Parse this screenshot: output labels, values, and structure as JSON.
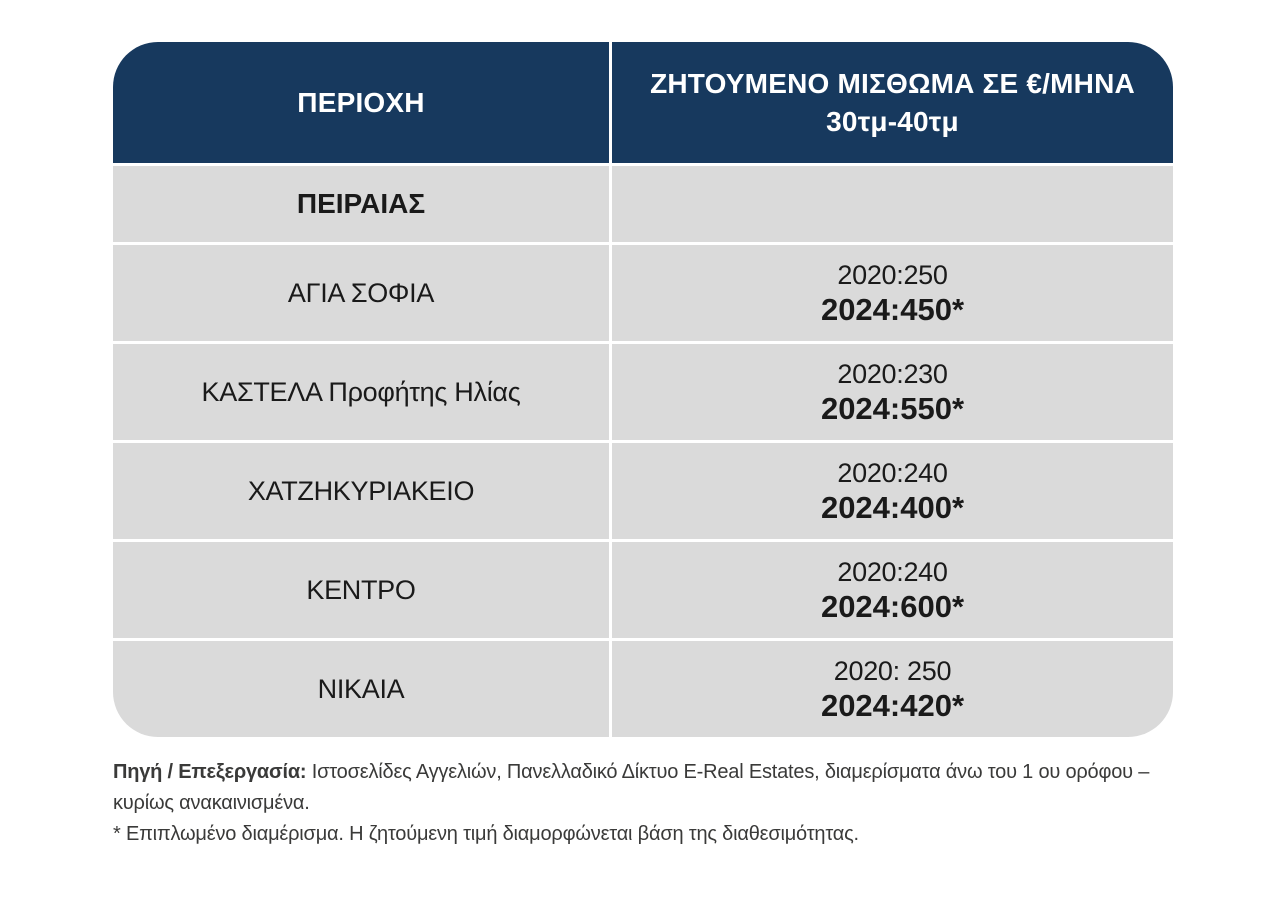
{
  "colors": {
    "header_bg": "#17395E",
    "header_text": "#FFFFFF",
    "row_bg": "#DADADA",
    "body_text": "#1A1A1A",
    "footer_text": "#3A3A39"
  },
  "table": {
    "header": {
      "area_label": "ΠΕΡΙΟΧΗ",
      "rent_label_line1": "ΖΗΤΟΥΜΕΝΟ ΜΙΣΘΩΜΑ ΣΕ €/ΜΗΝΑ",
      "rent_label_line2": "30τμ-40τμ"
    },
    "section_label": "ΠΕΙΡΑΙΑΣ",
    "rows": [
      {
        "area": "ΑΓΙΑ ΣΟΦΙΑ",
        "rent_2020": "2020:250",
        "rent_2024": "2024:450*"
      },
      {
        "area": "ΚΑΣΤΕΛΑ Προφήτης Ηλίας",
        "rent_2020": "2020:230",
        "rent_2024": "2024:550*"
      },
      {
        "area": "ΧΑΤΖΗΚΥΡΙΑΚΕΙΟ",
        "rent_2020": "2020:240",
        "rent_2024": "2024:400*"
      },
      {
        "area": "ΚΕΝΤΡΟ",
        "rent_2020": "2020:240",
        "rent_2024": "2024:600*"
      },
      {
        "area": "ΝΙΚΑΙΑ",
        "rent_2020": "2020: 250",
        "rent_2024": "2024:420*"
      }
    ]
  },
  "footer": {
    "source_label": "Πηγή / Επεξεργασία:",
    "source_text": " Ιστοσελίδες Αγγελιών, Πανελλαδικό Δίκτυο E-Real Estates, διαμερίσματα άνω του 1 ου ορόφου – κυρίως ανακαινισμένα.",
    "note": "* Επιπλωμένο διαμέρισμα. Η ζητούμενη τιμή διαμορφώνεται βάση της διαθεσιμότητας."
  }
}
